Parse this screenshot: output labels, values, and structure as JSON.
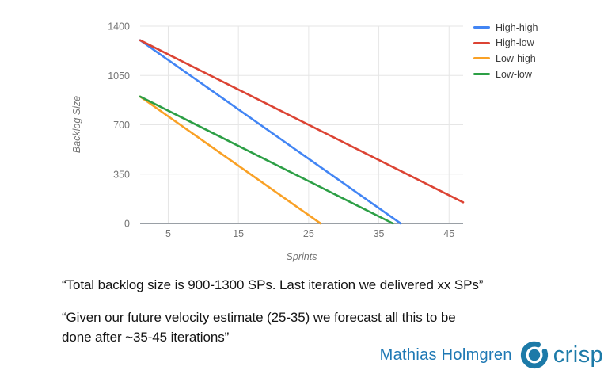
{
  "chart_data": {
    "type": "line",
    "title": "",
    "xlabel": "Sprints",
    "ylabel": "Backlog Size",
    "xlim": [
      1,
      47
    ],
    "ylim": [
      0,
      1400
    ],
    "x_ticks": [
      5,
      15,
      25,
      35,
      45
    ],
    "y_ticks": [
      0,
      350,
      700,
      1050,
      1400
    ],
    "grid": true,
    "legend_position": "right-top",
    "grid_color": "#E6E6E6",
    "axis_color": "#9AA0A6",
    "tick_color": "#757575",
    "series": [
      {
        "name": "High-high",
        "color": "#4285F4",
        "points": [
          [
            1,
            1300
          ],
          [
            38.1,
            0
          ]
        ]
      },
      {
        "name": "High-low",
        "color": "#DC4333",
        "points": [
          [
            1,
            1300
          ],
          [
            47,
            150
          ]
        ]
      },
      {
        "name": "Low-high",
        "color": "#F9A126",
        "points": [
          [
            1,
            900
          ],
          [
            26.7,
            0
          ]
        ]
      },
      {
        "name": "Low-low",
        "color": "#2C9F45",
        "points": [
          [
            1,
            900
          ],
          [
            37,
            0
          ]
        ]
      }
    ]
  },
  "commentary": {
    "quote1": "“Total backlog size is 900-1300 SPs. Last iteration we delivered xx SPs”",
    "quote2_lines": [
      "“Given our future velocity estimate (25-35)  we forecast all this to be",
      "done after ~35-45 iterations”"
    ]
  },
  "footer": {
    "author": "Mathias Holmgren",
    "author_color": "#1E78B4",
    "logo_text": "crisp",
    "logo_color": "#1C7AA8"
  }
}
